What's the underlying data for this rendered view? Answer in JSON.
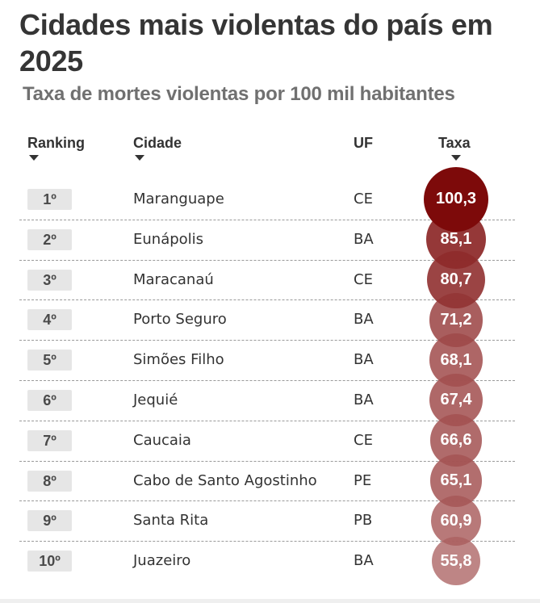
{
  "header": {
    "title": "Cidades mais violentas do país em 2025",
    "subtitle": "Taxa de mortes violentas por 100 mil habitantes"
  },
  "columns": {
    "rank": "Ranking",
    "city": "Cidade",
    "uf": "UF",
    "rate": "Taxa"
  },
  "colors": {
    "bubble_max": "#7d0a0a",
    "bubble_min": "#b06a6a",
    "badge_bg": "#e6e6e6",
    "separator": "#9a9a9a"
  },
  "chart_data": {
    "type": "table",
    "title": "Cidades mais violentas do país em 2025",
    "subtitle": "Taxa de mortes violentas por 100 mil habitantes",
    "columns": [
      "Ranking",
      "Cidade",
      "UF",
      "Taxa"
    ],
    "rows": [
      {
        "rank": "1º",
        "city": "Maranguape",
        "uf": "CE",
        "rate": 100.3,
        "rate_label": "100,3"
      },
      {
        "rank": "2º",
        "city": "Eunápolis",
        "uf": "BA",
        "rate": 85.1,
        "rate_label": "85,1"
      },
      {
        "rank": "3º",
        "city": "Maracanaú",
        "uf": "CE",
        "rate": 80.7,
        "rate_label": "80,7"
      },
      {
        "rank": "4º",
        "city": "Porto Seguro",
        "uf": "BA",
        "rate": 71.2,
        "rate_label": "71,2"
      },
      {
        "rank": "5º",
        "city": "Simões Filho",
        "uf": "BA",
        "rate": 68.1,
        "rate_label": "68,1"
      },
      {
        "rank": "6º",
        "city": "Jequié",
        "uf": "BA",
        "rate": 67.4,
        "rate_label": "67,4"
      },
      {
        "rank": "7º",
        "city": "Caucaia",
        "uf": "CE",
        "rate": 66.6,
        "rate_label": "66,6"
      },
      {
        "rank": "8º",
        "city": "Cabo de Santo Agostinho",
        "uf": "PE",
        "rate": 65.1,
        "rate_label": "65,1"
      },
      {
        "rank": "9º",
        "city": "Santa Rita",
        "uf": "PB",
        "rate": 60.9,
        "rate_label": "60,9"
      },
      {
        "rank": "10º",
        "city": "Juazeiro",
        "uf": "BA",
        "rate": 55.8,
        "rate_label": "55,8"
      }
    ]
  }
}
